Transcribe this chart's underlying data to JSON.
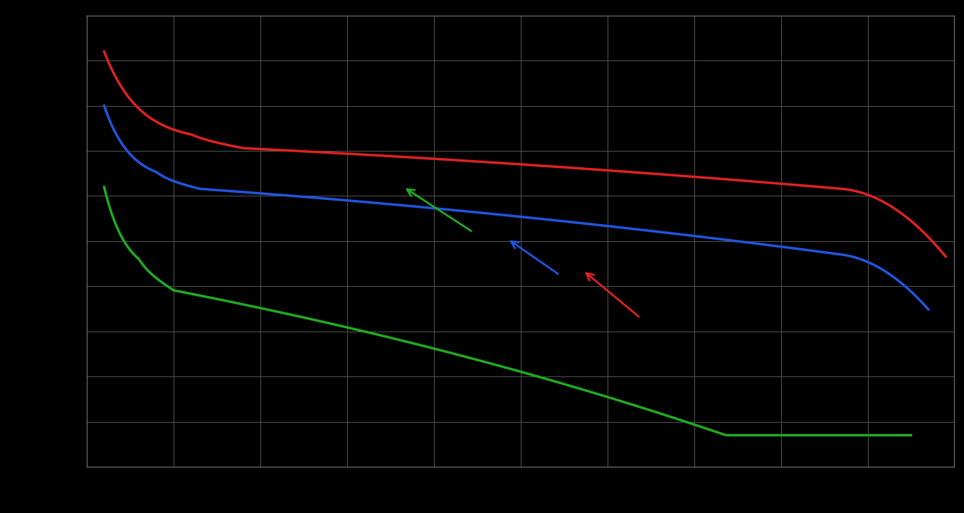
{
  "background_color": "#000000",
  "grid_color": "#555555",
  "line_colors": {
    "red": "#dd2222",
    "blue": "#2255dd",
    "green": "#22aa22"
  },
  "line_width": 2.5,
  "figsize": [
    13.55,
    7.21
  ],
  "dpi": 100
}
